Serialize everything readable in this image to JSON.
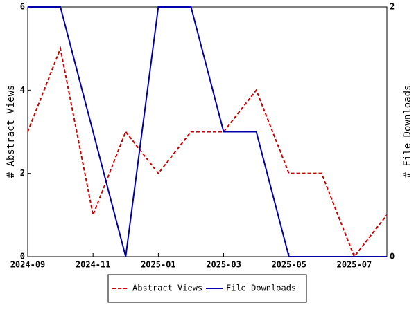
{
  "chart_data": {
    "type": "line",
    "x": [
      "2024-09",
      "2024-10",
      "2024-11",
      "2024-12",
      "2025-01",
      "2025-02",
      "2025-03",
      "2025-04",
      "2025-05",
      "2025-06",
      "2025-07",
      "2025-08"
    ],
    "xlim": [
      "2024-09",
      "2025-08"
    ],
    "xticks": [
      "2024-09",
      "2024-11",
      "2025-01",
      "2025-03",
      "2025-05",
      "2025-07"
    ],
    "ylabel": "# Abstract Views",
    "ylim": [
      0,
      6
    ],
    "yticks": [
      0,
      2,
      4,
      6
    ],
    "y2label": "# File Downloads",
    "y2lim": [
      0,
      2
    ],
    "y2ticks": [
      0,
      2
    ],
    "series": [
      {
        "name": "Abstract Views",
        "color": "#cc0000",
        "dash": true,
        "values": [
          3,
          5,
          1,
          3,
          2,
          3,
          3,
          4,
          2,
          2,
          0,
          1
        ]
      },
      {
        "name": "File Downloads",
        "color": "#0000aa",
        "dash": false,
        "axis": "y2",
        "values": [
          2,
          2,
          1,
          0,
          2,
          2,
          1,
          1,
          0,
          0,
          0,
          0
        ]
      }
    ]
  }
}
